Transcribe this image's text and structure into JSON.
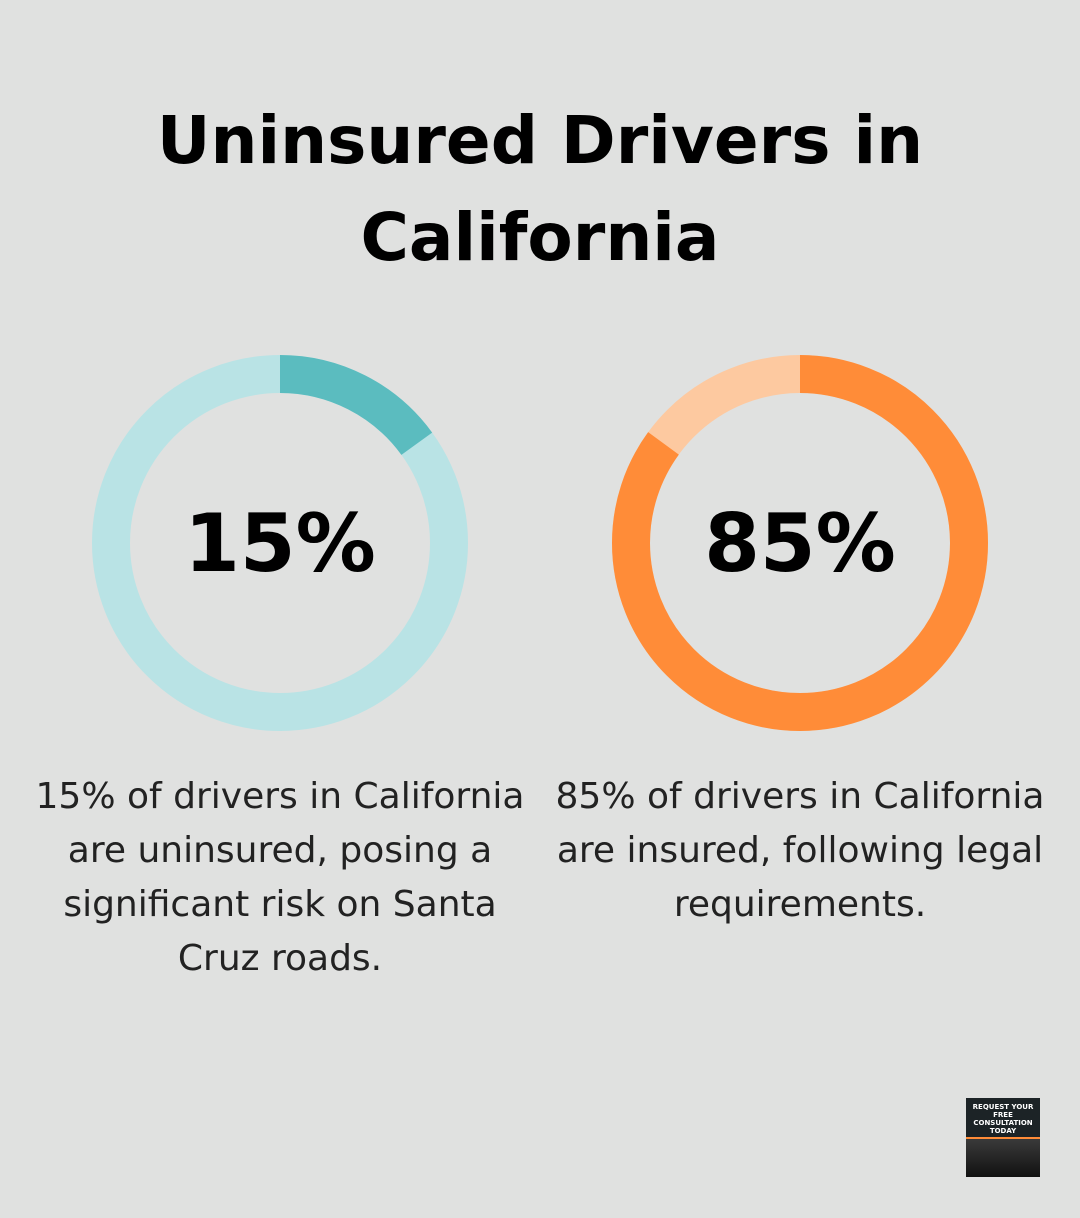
{
  "title": "Uninsured Drivers in California",
  "chart_data": [
    {
      "type": "donut",
      "values": [
        15
      ],
      "value_labels": [
        "15%"
      ],
      "color": "#5bbcbf",
      "track_color": "#b9e3e5",
      "description": "15% of drivers in California are uninsured, posing a significant risk on Santa Cruz roads."
    },
    {
      "type": "donut",
      "values": [
        85
      ],
      "value_labels": [
        "85%"
      ],
      "color": "#ff8c38",
      "track_color": "#fdc9a0",
      "description": "85% of drivers in California are insured, following legal requirements."
    }
  ],
  "badge": "REQUEST YOUR FREE CONSULTATION TODAY"
}
